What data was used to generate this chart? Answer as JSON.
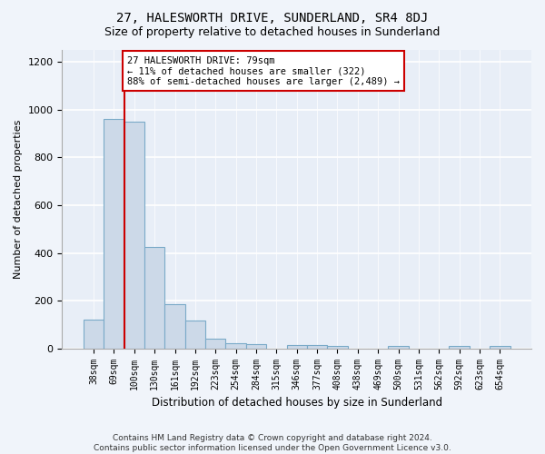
{
  "title": "27, HALESWORTH DRIVE, SUNDERLAND, SR4 8DJ",
  "subtitle": "Size of property relative to detached houses in Sunderland",
  "xlabel": "Distribution of detached houses by size in Sunderland",
  "ylabel": "Number of detached properties",
  "categories": [
    "38sqm",
    "69sqm",
    "100sqm",
    "130sqm",
    "161sqm",
    "192sqm",
    "223sqm",
    "254sqm",
    "284sqm",
    "315sqm",
    "346sqm",
    "377sqm",
    "408sqm",
    "438sqm",
    "469sqm",
    "500sqm",
    "531sqm",
    "562sqm",
    "592sqm",
    "623sqm",
    "654sqm"
  ],
  "values": [
    120,
    960,
    950,
    425,
    185,
    115,
    42,
    20,
    17,
    0,
    15,
    15,
    10,
    0,
    0,
    10,
    0,
    0,
    10,
    0,
    10
  ],
  "bar_color": "#ccd9e8",
  "bar_edge_color": "#7aaac8",
  "vline_x_index": 1.5,
  "vline_color": "#cc0000",
  "annotation_text": "27 HALESWORTH DRIVE: 79sqm\n← 11% of detached houses are smaller (322)\n88% of semi-detached houses are larger (2,489) →",
  "annotation_box_color": "#ffffff",
  "annotation_box_edge": "#cc0000",
  "ylim": [
    0,
    1250
  ],
  "yticks": [
    0,
    200,
    400,
    600,
    800,
    1000,
    1200
  ],
  "footer": "Contains HM Land Registry data © Crown copyright and database right 2024.\nContains public sector information licensed under the Open Government Licence v3.0.",
  "fig_background_color": "#f0f4fa",
  "plot_background": "#e8eef7",
  "grid_color": "#ffffff",
  "title_fontsize": 10,
  "subtitle_fontsize": 9
}
